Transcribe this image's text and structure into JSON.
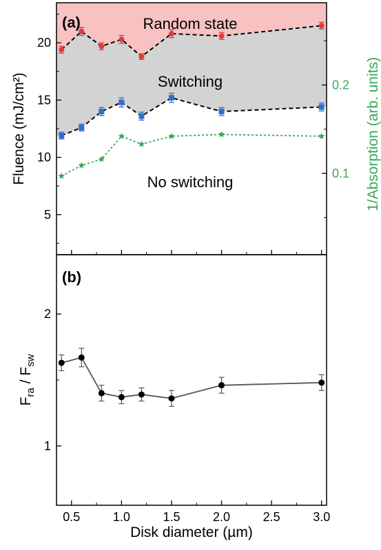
{
  "chart_data": [
    {
      "type": "line",
      "panel": "(a)",
      "xlabel": "",
      "ylabel": "Fluence (mJ/cm²)",
      "y2label": "1/Absorption (arb. units)",
      "xlim": [
        0.35,
        3.05
      ],
      "ylim": [
        1.5,
        23.5
      ],
      "y2lim": [
        0.008,
        0.293
      ],
      "yticks": [
        "5",
        "10",
        "15",
        "20"
      ],
      "y2ticks": [
        "0.1",
        "0.2"
      ],
      "x": [
        0.4,
        0.6,
        0.8,
        1.0,
        1.2,
        1.5,
        2.0,
        3.0
      ],
      "regions": [
        "Random state",
        "Switching",
        "No switching"
      ],
      "series": [
        {
          "values": [
            19.4,
            21.0,
            19.7,
            20.3,
            18.8,
            20.8,
            20.6,
            21.5
          ],
          "errors": [
            0.3,
            0.35,
            0.3,
            0.35,
            0.25,
            0.35,
            0.3,
            0.3
          ],
          "color": "#e03c3c",
          "axis": "left",
          "marker": "circle"
        },
        {
          "values": [
            11.9,
            12.6,
            14.0,
            14.8,
            13.6,
            15.2,
            14.0,
            14.4
          ],
          "errors": [
            0.3,
            0.3,
            0.35,
            0.4,
            0.35,
            0.4,
            0.35,
            0.35
          ],
          "color": "#2f6fcf",
          "axis": "left",
          "marker": "square"
        },
        {
          "values": [
            0.097,
            0.109,
            0.116,
            0.142,
            0.133,
            0.142,
            0.144,
            0.142
          ],
          "color": "#3aa655",
          "axis": "right",
          "marker": "star"
        }
      ],
      "colors": {
        "random_fill": "#f8c2c2",
        "switching_fill": "#d3d3d3",
        "right_axis": "#3aa655"
      }
    },
    {
      "type": "line",
      "panel": "(b)",
      "xlabel": "Disk diameter (µm)",
      "ylabel_main": "F",
      "ylabel_sub1": "ra",
      "ylabel_mid": " / F",
      "ylabel_sub2": "sw",
      "xlim": [
        0.35,
        3.05
      ],
      "ylim": [
        0.55,
        2.45
      ],
      "yticks": [
        "1",
        "2"
      ],
      "xticks": [
        "0.5",
        "1.0",
        "1.5",
        "2.0",
        "2.5",
        "3.0"
      ],
      "x": [
        0.4,
        0.6,
        0.8,
        1.0,
        1.2,
        1.5,
        2.0,
        3.0
      ],
      "series": [
        {
          "values": [
            1.63,
            1.67,
            1.4,
            1.37,
            1.39,
            1.36,
            1.46,
            1.48
          ],
          "errors": [
            0.06,
            0.07,
            0.06,
            0.05,
            0.05,
            0.06,
            0.06,
            0.06
          ],
          "color": "#000000",
          "line_color": "#555555",
          "marker": "circle"
        }
      ]
    }
  ]
}
